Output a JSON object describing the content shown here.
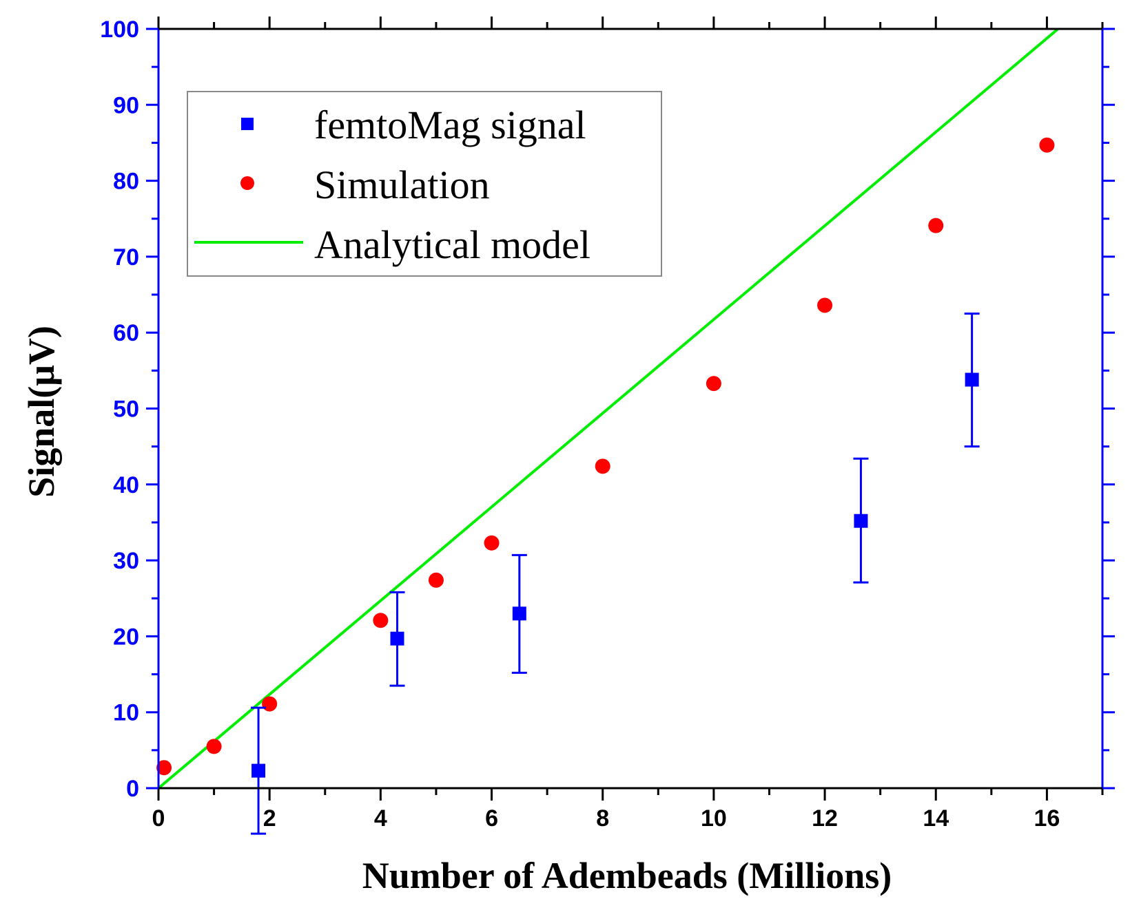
{
  "chart_data": {
    "type": "scatter",
    "title": "",
    "xlabel": "Number of Adembeads  (Millions)",
    "ylabel": "Signal(μV)",
    "xlim": [
      0,
      17
    ],
    "ylim": [
      0,
      100
    ],
    "x_ticks": [
      0,
      2,
      4,
      6,
      8,
      10,
      12,
      14,
      16
    ],
    "x_tick_labels": [
      "0",
      "2",
      "4",
      "6",
      "8",
      "10",
      "12",
      "14",
      "16"
    ],
    "y_ticks": [
      0,
      10,
      20,
      30,
      40,
      50,
      60,
      70,
      80,
      90,
      100
    ],
    "y_tick_labels": [
      "0",
      "10",
      "20",
      "30",
      "40",
      "50",
      "60",
      "70",
      "80",
      "90",
      "100"
    ],
    "legend_position": "top-left",
    "series": [
      {
        "name": "femtoMag signal",
        "marker": "square",
        "color": "#0000ff",
        "x": [
          1.8,
          4.3,
          6.5,
          12.65,
          14.65
        ],
        "y": [
          2.3,
          19.7,
          23.0,
          35.2,
          53.8
        ],
        "yerr_low": [
          -6.0,
          13.5,
          15.2,
          27.1,
          45.0
        ],
        "yerr_high": [
          10.6,
          25.8,
          30.7,
          43.4,
          62.5
        ]
      },
      {
        "name": "Simulation",
        "marker": "circle",
        "color": "#ff0000",
        "x": [
          0.1,
          1.0,
          2.0,
          4.0,
          5.0,
          6.0,
          8.0,
          10.0,
          12.0,
          14.0,
          16.0
        ],
        "y": [
          2.7,
          5.5,
          11.1,
          22.1,
          27.4,
          32.3,
          42.4,
          53.3,
          63.6,
          74.1,
          84.7
        ]
      },
      {
        "name": "Analytical model",
        "marker": "line",
        "color": "#00ee00",
        "x": [
          0.0,
          16.2
        ],
        "y": [
          0.0,
          100.0
        ]
      }
    ]
  }
}
